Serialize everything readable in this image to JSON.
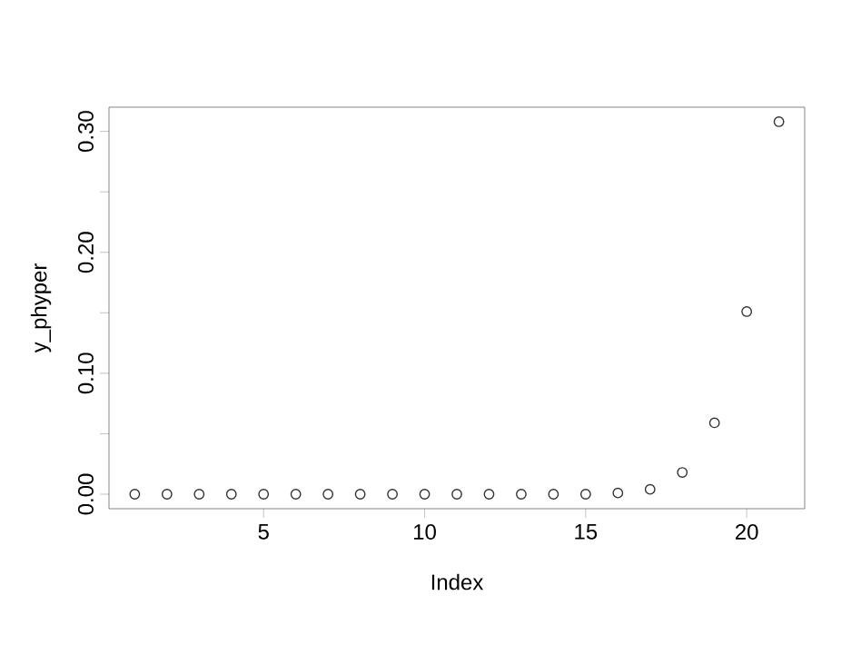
{
  "chart_data": {
    "type": "scatter",
    "xlabel": "Index",
    "ylabel": "y_phyper",
    "marker": "circle",
    "color": "#333333",
    "x": [
      1,
      2,
      3,
      4,
      5,
      6,
      7,
      8,
      9,
      10,
      11,
      12,
      13,
      14,
      15,
      16,
      17,
      18,
      19,
      20,
      21
    ],
    "values": [
      0,
      0,
      0,
      0,
      0,
      0,
      0,
      0,
      0,
      0,
      0,
      0,
      0,
      0,
      0,
      0.001,
      0.004,
      0.018,
      0.059,
      0.151,
      0.308
    ],
    "xlim": [
      0.2,
      21.8
    ],
    "ylim": [
      -0.012,
      0.32
    ],
    "xticks": [
      5,
      10,
      15,
      20
    ],
    "yticks": [
      {
        "value": 0,
        "label": "0.00"
      },
      {
        "value": 0.05,
        "label": null
      },
      {
        "value": 0.1,
        "label": "0.10"
      },
      {
        "value": 0.15,
        "label": null
      },
      {
        "value": 0.2,
        "label": "0.20"
      },
      {
        "value": 0.25,
        "label": null
      },
      {
        "value": 0.3,
        "label": "0.30"
      }
    ]
  }
}
